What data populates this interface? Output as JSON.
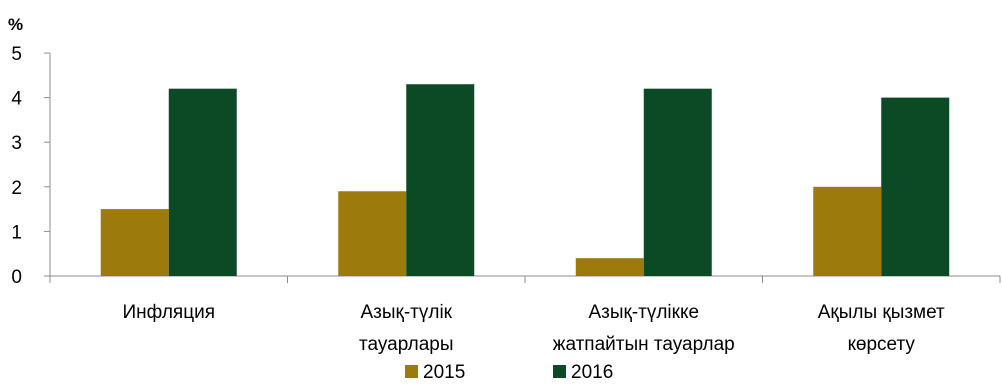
{
  "chart_data": {
    "type": "bar",
    "unit_label": "%",
    "categories": [
      [
        "Инфляция"
      ],
      [
        "Азық-түлік",
        "тауарлары"
      ],
      [
        "Азық-түлікке",
        "жатпайтын тауарлар"
      ],
      [
        "Ақылы қызмет",
        "көрсету"
      ]
    ],
    "series": [
      {
        "name": "2015",
        "color": "#9c7a0c",
        "values": [
          1.5,
          1.9,
          0.4,
          2.0
        ]
      },
      {
        "name": "2016",
        "color": "#0b4a24",
        "values": [
          4.2,
          4.3,
          4.2,
          4.0
        ]
      }
    ],
    "ylim": [
      0,
      5
    ],
    "yticks": [
      0,
      1,
      2,
      3,
      4,
      5
    ],
    "grid": false,
    "legend_position": "bottom"
  }
}
